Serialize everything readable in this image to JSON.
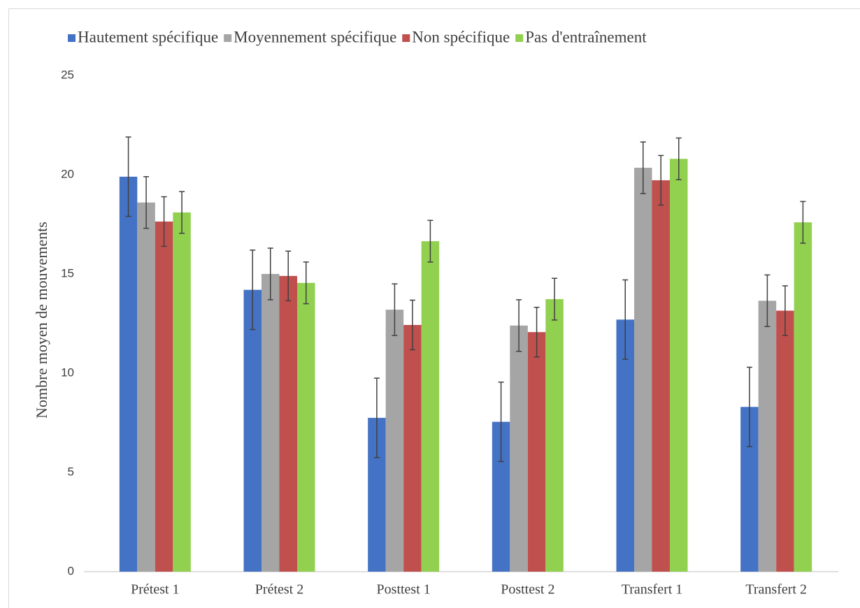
{
  "chart_data": {
    "type": "bar",
    "ylabel": "Nombre moyen de mouvements",
    "categories": [
      "Prétest 1",
      "Prétest 2",
      "Posttest 1",
      "Posttest 2",
      "Transfert 1",
      "Transfert 2"
    ],
    "series": [
      {
        "name": "Hautement spécifique",
        "color": "#4472c4",
        "values": [
          19.9,
          14.2,
          7.75,
          7.55,
          12.7,
          8.3
        ],
        "errors": [
          2.0,
          2.0,
          2.0,
          2.0,
          2.0,
          2.0
        ]
      },
      {
        "name": "Moyennement spécifique",
        "color": "#a5a5a5",
        "values": [
          18.6,
          15.0,
          13.2,
          12.4,
          20.35,
          13.65
        ],
        "errors": [
          1.3,
          1.3,
          1.3,
          1.3,
          1.3,
          1.3
        ]
      },
      {
        "name": "Non spécifique",
        "color": "#c0504d",
        "values": [
          17.64,
          14.9,
          12.43,
          12.07,
          19.72,
          13.15
        ],
        "errors": [
          1.25,
          1.25,
          1.25,
          1.25,
          1.25,
          1.25
        ]
      },
      {
        "name": "Pas d'entraînement",
        "color": "#92d050",
        "values": [
          18.1,
          14.55,
          16.65,
          13.73,
          20.8,
          17.6
        ],
        "errors": [
          1.05,
          1.05,
          1.05,
          1.05,
          1.05,
          1.05
        ]
      }
    ],
    "ylim": [
      0,
      25
    ],
    "yticks": [
      0,
      5,
      10,
      15,
      20,
      25
    ],
    "grid": false,
    "legend": "top"
  }
}
